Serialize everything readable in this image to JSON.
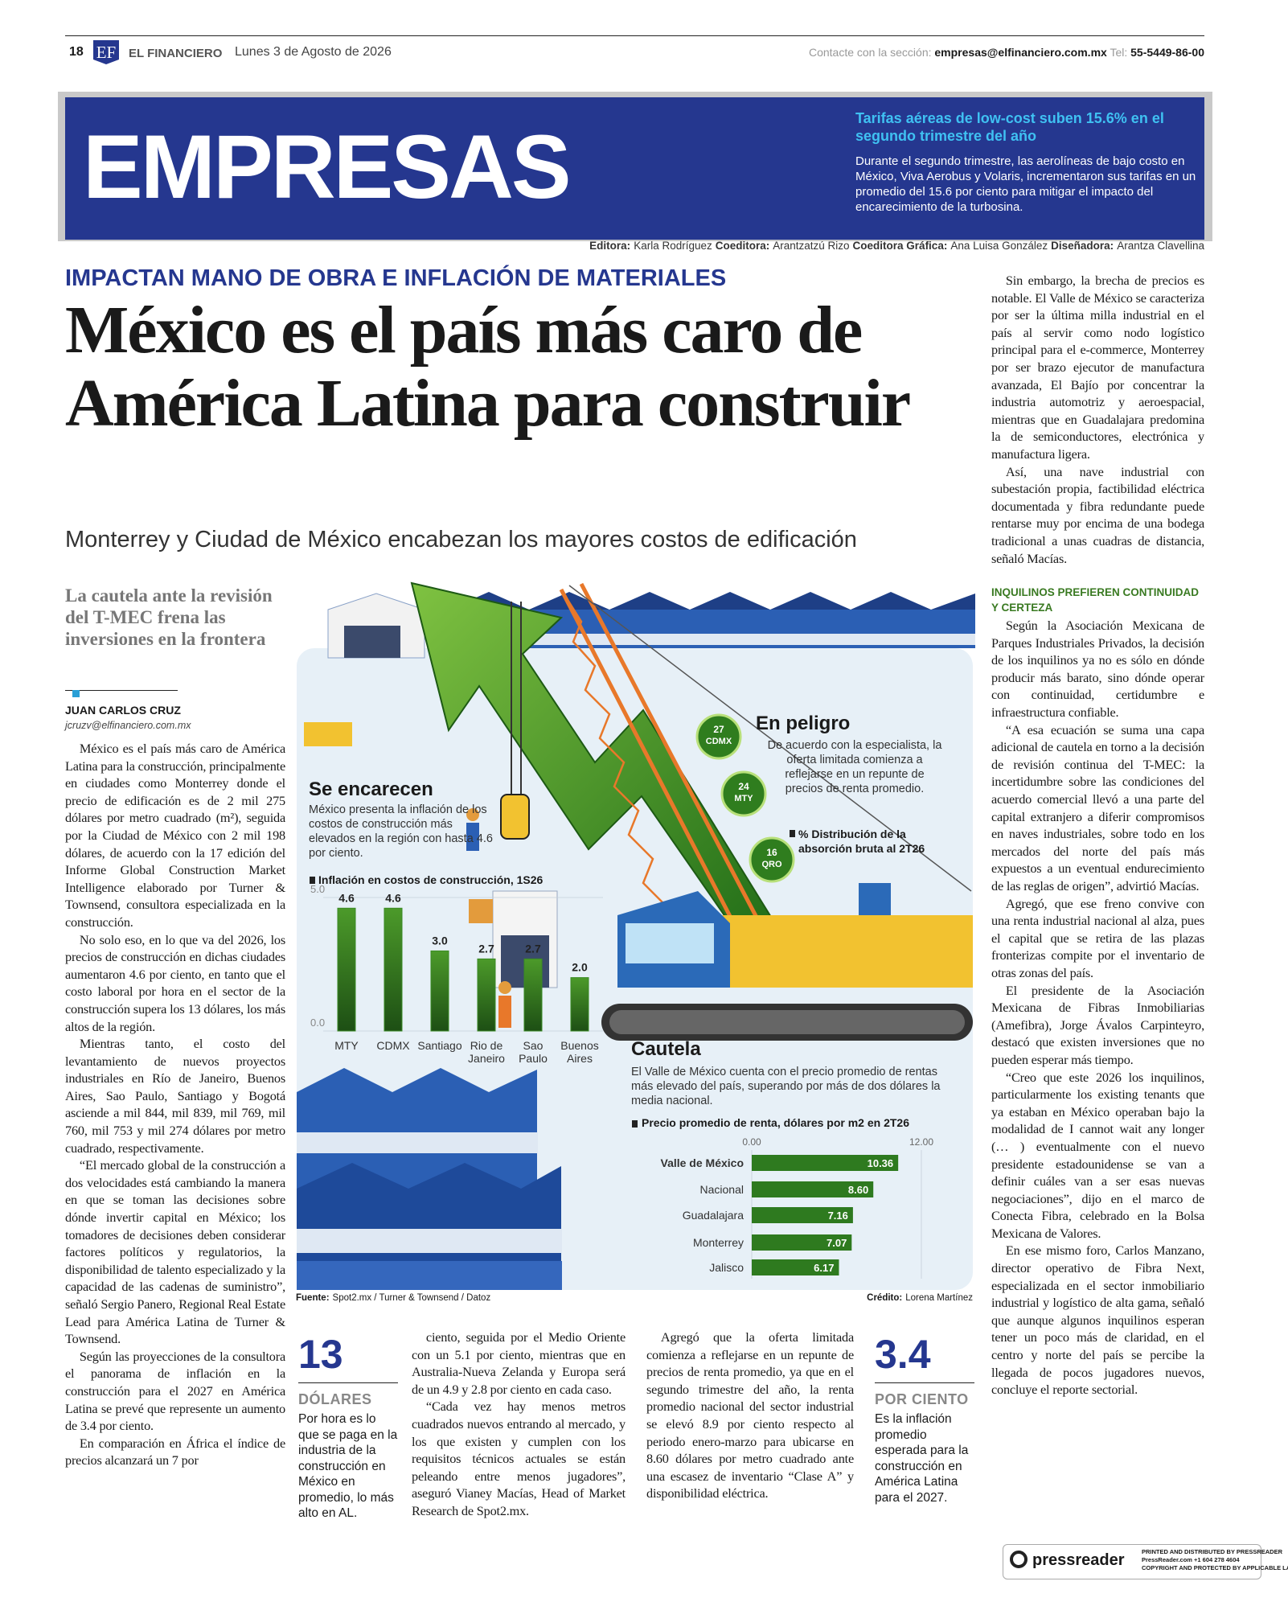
{
  "header": {
    "page": "18",
    "logo": "EF",
    "paper": "EL FINANCIERO",
    "date": "Lunes 3 de Agosto de 2026",
    "contact_label": "Contacte con la sección:",
    "email": "empresas@elfinanciero.com.mx",
    "tel_label": "Tel:",
    "tel": "55-5449-86-00"
  },
  "banner": {
    "section": "EMPRESAS",
    "teaser_title": "Tarifas aéreas de low-cost suben 15.6% en el segundo trimestre del año",
    "teaser_text": "Durante el segundo trimestre, las aerolíneas de bajo costo en México, Viva Aerobus y Volaris, incrementaron sus tarifas en un promedio del 15.6 por ciento para mitigar el impacto del encarecimiento de la turbosina."
  },
  "credits": [
    {
      "role": "Editora:",
      "name": "Karla Rodríguez"
    },
    {
      "role": "Coeditora:",
      "name": "Arantzatzú Rizo"
    },
    {
      "role": "Coeditora Gráfica:",
      "name": "Ana Luisa González"
    },
    {
      "role": "Diseñadora:",
      "name": "Arantza Clavellina"
    }
  ],
  "article": {
    "kicker": "IMPACTAN MANO DE OBRA E INFLACIÓN DE MATERIALES",
    "headline": "México es el país más caro de América Latina para construir",
    "subhead": "Monterrey y Ciudad de México encabezan los mayores costos de edificación",
    "pullquote": "La cautela ante la revisión del T-MEC frena las inversiones en la frontera",
    "author": "JUAN CARLOS CRUZ",
    "author_email": "jcruzv@elfinanciero.com.mx",
    "body_left": [
      "México es el país más caro de América Latina para la construcción, principalmente en ciudades como Monterrey donde el precio de edificación es de 2 mil 275 dólares por metro cuadrado (m²), seguida por la Ciudad de México con 2 mil 198 dólares, de acuerdo con la 17 edición del Informe Global Construction Market Intelligence elaborado por Turner & Townsend, consultora especializada en la construcción.",
      "No solo eso, en lo que va del 2026, los precios de construcción en dichas ciudades aumentaron 4.6 por ciento, en tanto que el costo laboral por hora en el sector de la construcción supera los 13 dólares, los más altos de la región.",
      "Mientras tanto, el costo del levantamiento de nuevos proyectos industriales en Río de Janeiro, Buenos Aires, Sao Paulo, Santiago y Bogotá asciende a mil 844, mil 839, mil 769, mil 760, mil 753 y mil 274 dólares por metro cuadrado, respectivamente.",
      "“El mercado global de la construcción a dos velocidades está cambiando la manera en que se toman las decisiones sobre dónde invertir capital en México; los tomadores de decisiones deben considerar factores políticos y regulatorios, la disponibilidad de talento especializado y la capacidad de las cadenas de suministro”, señaló Sergio Panero, Regional Real Estate Lead para América Latina de Turner & Townsend.",
      "Según las proyecciones de la consultora el panorama de inflación en la construcción para el 2027 en América Latina se prevé que represente un aumento de 3.4 por ciento.",
      "En comparación en África el índice de precios alcanzará un 7 por"
    ],
    "body_col2": [
      "ciento, seguida por el Medio Oriente con un 5.1 por ciento, mientras que en Australia-Nueva Zelanda y Europa será de un 4.9 y 2.8 por ciento en cada caso.",
      "“Cada vez hay menos metros cuadrados nuevos entrando al mercado, y los que existen y cumplen con los requisitos técnicos actuales se están peleando entre menos jugadores”, aseguró Vianey Macías, Head of Market Research de Spot2.mx."
    ],
    "body_col3": [
      "Agregó que la oferta limitada comienza a reflejarse en un repunte de precios de renta promedio, ya que en el segundo trimestre del año, la renta promedio nacional del sector industrial se elevó 8.9 por ciento respecto al periodo enero-marzo para ubicarse en 8.60 dólares por metro cuadrado ante una escasez de inventario “Clase A” y disponibilidad eléctrica."
    ],
    "body_right_a": [
      "Sin embargo, la brecha de precios es notable. El Valle de México se caracteriza por ser la última milla industrial en el país al servir como nodo logístico principal para el e-commerce, Monterrey por ser brazo ejecutor de manufactura avanzada, El Bajío por concentrar la industria automotriz y aeroespacial, mientras que en Guadalajara predomina la de semiconductores, electrónica y manufactura ligera.",
      "Así, una nave industrial con subestación propia, factibilidad eléctrica documentada y fibra redundante puede rentarse muy por encima de una bodega tradicional a unas cuadras de distancia, señaló Macías."
    ],
    "right_subheading": "INQUILINOS PREFIEREN CONTINUIDAD Y CERTEZA",
    "body_right_b": [
      "Según la Asociación Mexicana de Parques Industriales Privados, la decisión de los inquilinos ya no es sólo en dónde producir más barato, sino dónde operar con continuidad, certidumbre e infraestructura confiable.",
      "“A esa ecuación se suma una capa adicional de cautela en torno a la decisión de revisión continua del T-MEC: la incertidumbre sobre las condiciones del acuerdo comercial llevó a una parte del capital extranjero a diferir compromisos en naves industriales, sobre todo en los mercados del norte del país más expuestos a un eventual endurecimiento de las reglas de origen”, advirtió Macías.",
      "Agregó, que ese freno convive con una renta industrial nacional al alza, pues el capital que se retira de las plazas fronterizas compite por el inventario de otras zonas del país.",
      "El presidente de la Asociación Mexicana de Fibras Inmobiliarias (Amefibra), Jorge Ávalos Carpinteyro, destacó que existen inversiones que no pueden esperar más tiempo.",
      "“Creo que este 2026 los inquilinos, particularmente los existing tenants que ya estaban en México operaban bajo la modalidad de I cannot wait any longer (… ) eventualmente con el nuevo presidente estadounidense se van a definir cuáles van a ser esas nuevas negociaciones”, dijo en el marco de Conecta Fibra, celebrado en la Bolsa Mexicana de Valores.",
      "En ese mismo foro, Carlos Manzano, director operativo de Fibra Next, especializada en el sector inmobiliario industrial y logístico de alta gama, señaló que aunque algunos inquilinos esperan tener un poco más de claridad, en el centro y norte del país se percibe la llegada de pocos jugadores nuevos, concluye el reporte sectorial."
    ]
  },
  "stats": [
    {
      "number": "13",
      "unit": "DÓLARES",
      "text": "Por hora es lo que se paga en la industria de la construcción en México en promedio, lo más alto en AL."
    },
    {
      "number": "3.4",
      "unit": "POR CIENTO",
      "text": "Es la inflación promedio esperada para la construcción en América Latina para el 2027."
    }
  ],
  "infographic": {
    "peligro": {
      "title": "En peligro",
      "text": "De acuerdo con la especialista, la oferta limitada comienza a reflejarse en un repunte de precios de renta promedio.",
      "chart_title": "% Distribución de la absorción bruta al 2T26",
      "items": [
        {
          "value": 27,
          "label": "CDMX"
        },
        {
          "value": 24,
          "label": "MTY"
        },
        {
          "value": 16,
          "label": "QRO"
        }
      ],
      "color": "#2f7d1e"
    },
    "encarecen": {
      "type": "bar",
      "title": "Se encarecen",
      "text": "México presenta la inflación de los costos de construcción más elevados en la región con hasta 4.6 por ciento.",
      "chart_title": "Inflación en costos de construcción, 1S26",
      "categories": [
        "MTY",
        "CDMX",
        "Santiago",
        "Rio de Janeiro",
        "Sao Paulo",
        "Buenos Aires"
      ],
      "values": [
        4.6,
        4.6,
        3.0,
        2.7,
        2.7,
        2.0
      ],
      "value_labels": [
        "4.6",
        "4.6",
        "3.0",
        "2.7",
        "2.7",
        "2.0"
      ],
      "ylim": [
        0,
        5
      ],
      "yticks": [
        {
          "value": 0,
          "label": "0.0"
        },
        {
          "value": 5,
          "label": "5.0"
        }
      ],
      "color": "#3a8a24"
    },
    "cautela": {
      "type": "hbar",
      "title": "Cautela",
      "text": "El Valle de México cuenta con el precio promedio de rentas más elevado del país, superando por más de dos dólares la media nacional.",
      "chart_title": "Precio promedio de renta, dólares por m2 en 2T26",
      "categories": [
        "Valle de México",
        "Nacional",
        "Guadalajara",
        "Monterrey",
        "Jalisco"
      ],
      "values": [
        10.36,
        8.6,
        7.16,
        7.07,
        6.17
      ],
      "value_labels": [
        "10.36",
        "8.60",
        "7.16",
        "7.07",
        "6.17"
      ],
      "xlim": [
        0,
        12
      ],
      "xticks": [
        {
          "value": 0,
          "label": "0.00"
        },
        {
          "value": 12,
          "label": "12.00"
        }
      ],
      "color": "#2e7a1f"
    },
    "source_label": "Fuente:",
    "source": "Spot2.mx / Turner & Townsend / Datoz",
    "credit_label": "Crédito:",
    "credit": "Lorena Martínez"
  },
  "footer": {
    "brand": "pressreader",
    "lines": [
      "PRINTED AND DISTRIBUTED BY PRESSREADER",
      "PressReader.com +1 604 278 4604",
      "COPYRIGHT AND PROTECTED BY APPLICABLE LAW"
    ]
  }
}
